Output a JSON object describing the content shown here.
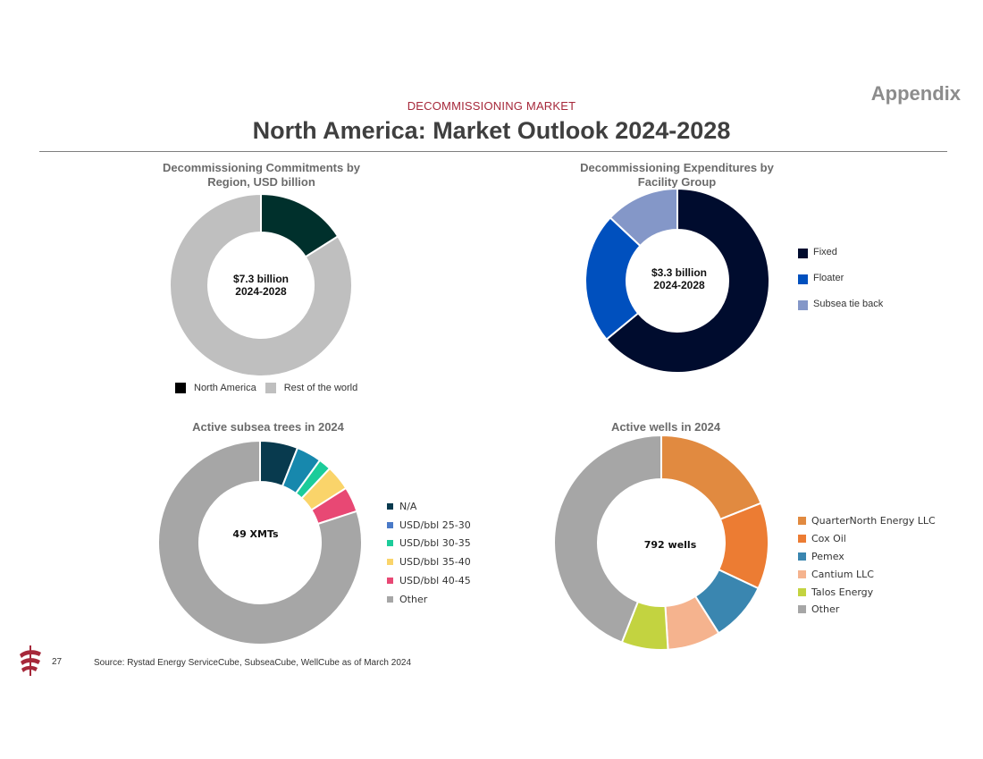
{
  "header": {
    "appendix": "Appendix",
    "kicker": "DECOMMISSIONING MARKET",
    "title": "North America: Market Outlook 2024-2028"
  },
  "footer": {
    "page_number": "27",
    "source": "Source:  Rystad Energy ServiceCube, SubseaCube, WellCube as of March 2024"
  },
  "chart_data": [
    {
      "type": "pie",
      "donut": true,
      "title": "Decommissioning Commitments by Region, USD billion",
      "title_lines": [
        "Decommissioning Commitments by",
        "Region, USD billion"
      ],
      "center_label": [
        "$7.3 billion",
        "2024-2028"
      ],
      "legend_position": "bottom",
      "categories": [
        "North America",
        "Rest of the world"
      ],
      "values": [
        16,
        84
      ],
      "colors": [
        "#00302c",
        "#bfbfbf"
      ],
      "legend_colors": [
        "#000000",
        "#bfbfbf"
      ]
    },
    {
      "type": "pie",
      "donut": true,
      "title": "Decommissioning Expenditures by Facility Group",
      "title_lines": [
        "Decommissioning Expenditures by",
        "Facility Group"
      ],
      "center_label": [
        "$3.3 billion",
        "2024-2028"
      ],
      "legend_position": "right",
      "categories": [
        "Fixed",
        "Floater",
        "Subsea tie back"
      ],
      "values": [
        64,
        23,
        13
      ],
      "colors": [
        "#000c2e",
        "#0050be",
        "#8497c8"
      ]
    },
    {
      "type": "pie",
      "donut": true,
      "title": "Active subsea trees in 2024",
      "title_lines": [
        "Active subsea trees in 2024"
      ],
      "center_label": [
        "49 XMTs"
      ],
      "legend_position": "right",
      "categories": [
        "N/A",
        "USD/bbl 25-30",
        "USD/bbl 30-35",
        "USD/bbl 35-40",
        "USD/bbl 40-45",
        "Other"
      ],
      "values": [
        6,
        4,
        2,
        4,
        4,
        80
      ],
      "colors": [
        "#083a4e",
        "#1788ad",
        "#1ccc9a",
        "#fad46a",
        "#e84874",
        "#a6a6a6"
      ],
      "legend_colors": [
        "#083a4e",
        "#4a7ac8",
        "#1ccc9a",
        "#fad46a",
        "#e84874",
        "#a6a6a6"
      ]
    },
    {
      "type": "pie",
      "donut": true,
      "title": "Active wells in 2024",
      "title_lines": [
        "Active wells in 2024"
      ],
      "center_label": [
        "792 wells"
      ],
      "legend_position": "right",
      "categories": [
        "QuarterNorth Energy LLC",
        "Cox Oil",
        "Pemex",
        "Cantium LLC",
        "Talos Energy",
        "Other"
      ],
      "values": [
        19,
        13,
        9,
        8,
        7,
        44
      ],
      "colors": [
        "#e18a40",
        "#ec7c33",
        "#3a86b0",
        "#f5b38e",
        "#c3d340",
        "#a6a6a6"
      ]
    }
  ]
}
